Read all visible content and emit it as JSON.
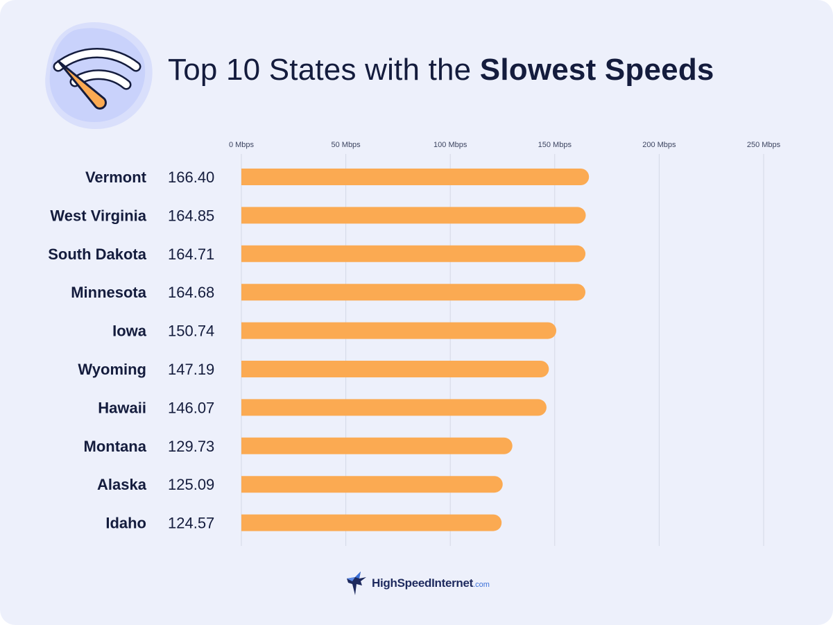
{
  "title": {
    "light": "Top 10 States with the",
    "bold": "Slowest Speeds"
  },
  "colors": {
    "bar": "#fbaa52",
    "text": "#141c3d",
    "grid": "#d4d8e6",
    "tick": "#3c4460"
  },
  "icons": {
    "hero": "speedometer-wifi-icon",
    "logo": "hummingbird-icon"
  },
  "chart_data": {
    "type": "bar",
    "orientation": "horizontal",
    "categories": [
      "Vermont",
      "West Virginia",
      "South Dakota",
      "Minnesota",
      "Iowa",
      "Wyoming",
      "Hawaii",
      "Montana",
      "Alaska",
      "Idaho"
    ],
    "values": [
      166.4,
      164.85,
      164.71,
      164.68,
      150.74,
      147.19,
      146.07,
      129.73,
      125.09,
      124.57
    ],
    "value_labels": [
      "166.40",
      "164.85",
      "164.71",
      "164.68",
      "150.74",
      "147.19",
      "146.07",
      "129.73",
      "125.09",
      "124.57"
    ],
    "x_ticks": [
      "0 Mbps",
      "50 Mbps",
      "100 Mbps",
      "150 Mbps",
      "200 Mbps",
      "250 Mbps"
    ],
    "x_tick_values": [
      0,
      50,
      100,
      150,
      200,
      250
    ],
    "xlim": [
      0,
      250
    ],
    "xlabel": "",
    "ylabel": "",
    "grid": true,
    "legend": "none"
  },
  "footer": {
    "brand": "HighSpeedInternet",
    "domain": ".com"
  }
}
